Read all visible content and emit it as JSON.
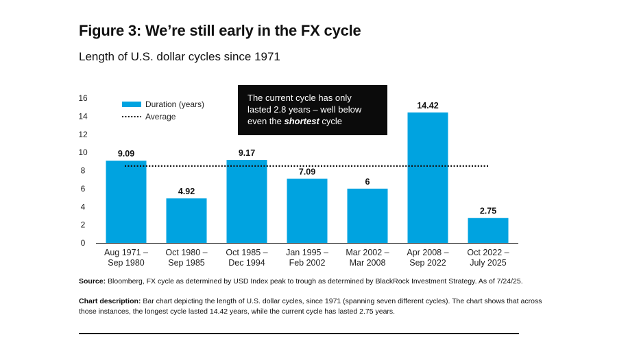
{
  "figure": {
    "title": "Figure 3: We’re still early in the FX cycle",
    "subtitle": "Length of U.S. dollar cycles since 1971"
  },
  "callout": {
    "line1": "The current cycle has only",
    "line2": "lasted 2.8 years – well below",
    "line3_prefix": "even the ",
    "line3_emphasis": "shortest",
    "line3_suffix": " cycle"
  },
  "footer": {
    "source_label": "Source:",
    "source_text": "Bloomberg, FX cycle as determined by USD Index peak to trough as determined by BlackRock Investment Strategy. As of 7/24/25.",
    "description_label": "Chart description:",
    "description_text": "Bar chart depicting the length of U.S. dollar cycles, since 1971 (spanning seven different cycles). The chart shows that across those instances, the longest cycle lasted 14.42 years, while the current cycle has lasted 2.75 years."
  },
  "chart_data": {
    "type": "bar",
    "title": "",
    "xlabel": "",
    "ylabel": "",
    "ylim": [
      0,
      16
    ],
    "yticks": [
      0,
      2,
      4,
      6,
      8,
      10,
      12,
      14,
      16
    ],
    "grid": false,
    "legend_position": "top-left",
    "categories": [
      [
        "Aug 1971 –",
        "Sep 1980"
      ],
      [
        "Oct 1980 –",
        "Sep 1985"
      ],
      [
        "Oct 1985 –",
        "Dec 1994"
      ],
      [
        "Jan 1995 –",
        "Feb 2002"
      ],
      [
        "Mar 2002 –",
        "Mar 2008"
      ],
      [
        "Apr 2008 –",
        "Sep 2022"
      ],
      [
        "Oct 2022 –",
        "July 2025"
      ]
    ],
    "series": [
      {
        "name": "Duration (years)",
        "color": "#00a3e0",
        "values": [
          9.09,
          4.92,
          9.17,
          7.09,
          6,
          14.42,
          2.75
        ],
        "labels": [
          "9.09",
          "4.92",
          "9.17",
          "7.09",
          "6",
          "14.42",
          "2.75"
        ]
      }
    ],
    "reference_line": {
      "name": "Average",
      "value": 8.5,
      "style": "dotted",
      "color": "#111111"
    }
  }
}
